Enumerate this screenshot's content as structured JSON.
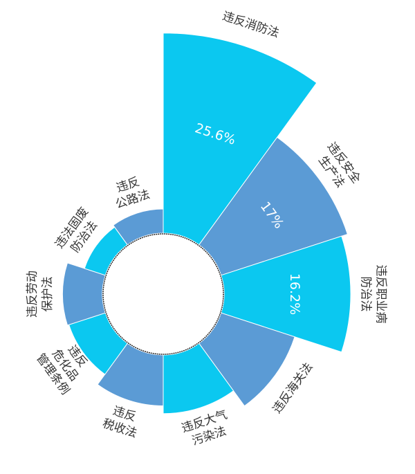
{
  "chart_data": {
    "type": "rose",
    "categories": [
      "违反消防法",
      "违反安全\n生产法",
      "违反职业病\n防治法",
      "违反海关法",
      "违反大气\n污染法",
      "违反\n税收法",
      "违反\n危化品\n管理条例",
      "违反劳动\n保护法",
      "违法固废\n防治法",
      "违反\n公路法"
    ],
    "values": [
      25.6,
      17,
      16.2,
      9.9,
      7.5,
      6.5,
      4.9,
      5.1,
      2.8,
      3.1
    ],
    "value_labels": [
      "25.6%",
      "17%",
      "16.2%",
      null,
      null,
      null,
      null,
      null,
      null,
      null
    ],
    "colors": [
      "#0bc8f0",
      "#5b9bd5",
      "#0bc8f0",
      "#5b9bd5",
      "#0bc8f0",
      "#5b9bd5",
      "#0bc8f0",
      "#5b9bd5",
      "#0bc8f0",
      "#5b9bd5"
    ]
  }
}
